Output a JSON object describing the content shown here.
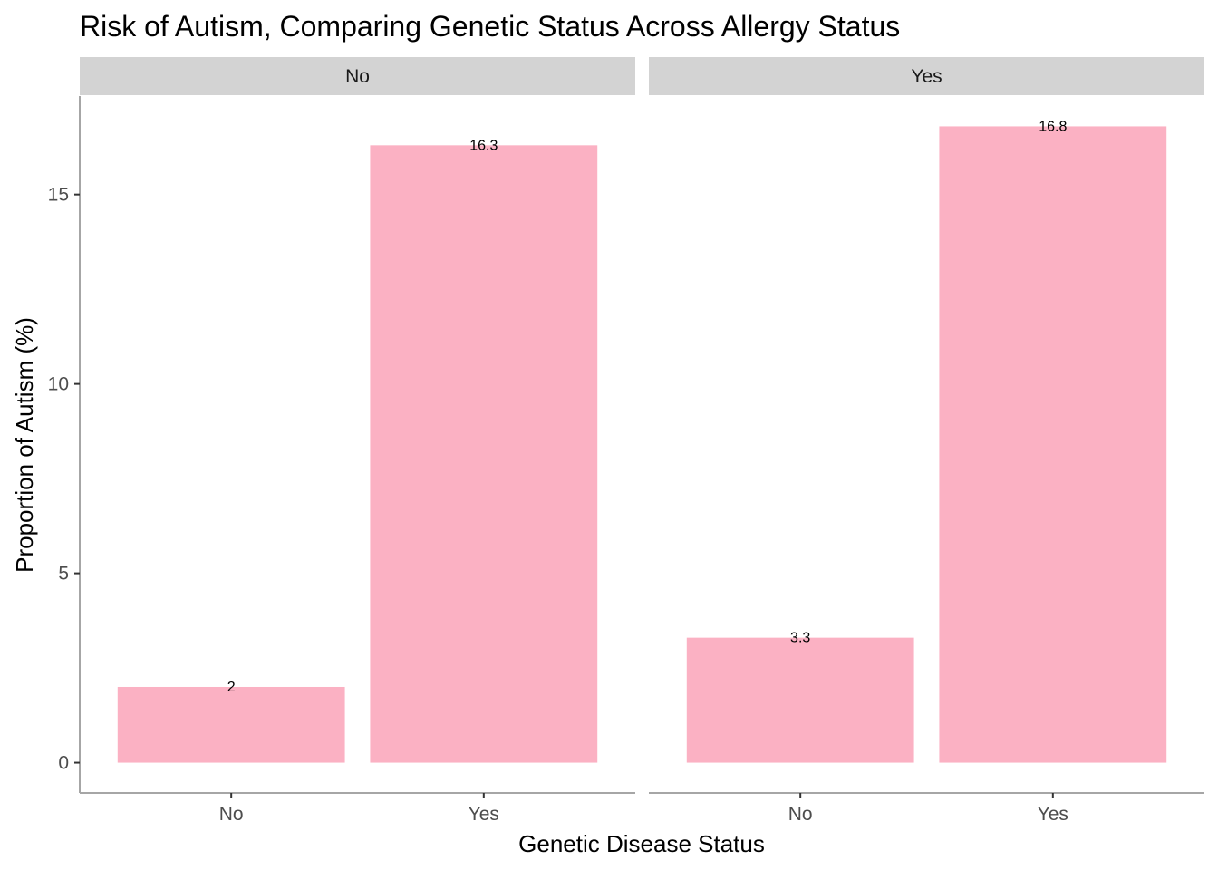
{
  "chart_data": {
    "type": "bar",
    "title": "Risk of Autism, Comparing Genetic Status Across Allergy Status",
    "xlabel": "Genetic Disease Status",
    "ylabel": "Proportion of Autism (%)",
    "ylim": [
      -0.8,
      17.6
    ],
    "yticks": [
      0,
      5,
      10,
      15
    ],
    "categories": [
      "No",
      "Yes"
    ],
    "bar_color": "#fbb1c3",
    "strip_color": "#d3d3d3",
    "facets": [
      {
        "label": "No",
        "values": [
          2,
          16.3
        ],
        "data_labels": [
          "2",
          "16.3"
        ]
      },
      {
        "label": "Yes",
        "values": [
          3.3,
          16.8
        ],
        "data_labels": [
          "3.3",
          "16.8"
        ]
      }
    ],
    "grid": false,
    "legend": "none"
  }
}
